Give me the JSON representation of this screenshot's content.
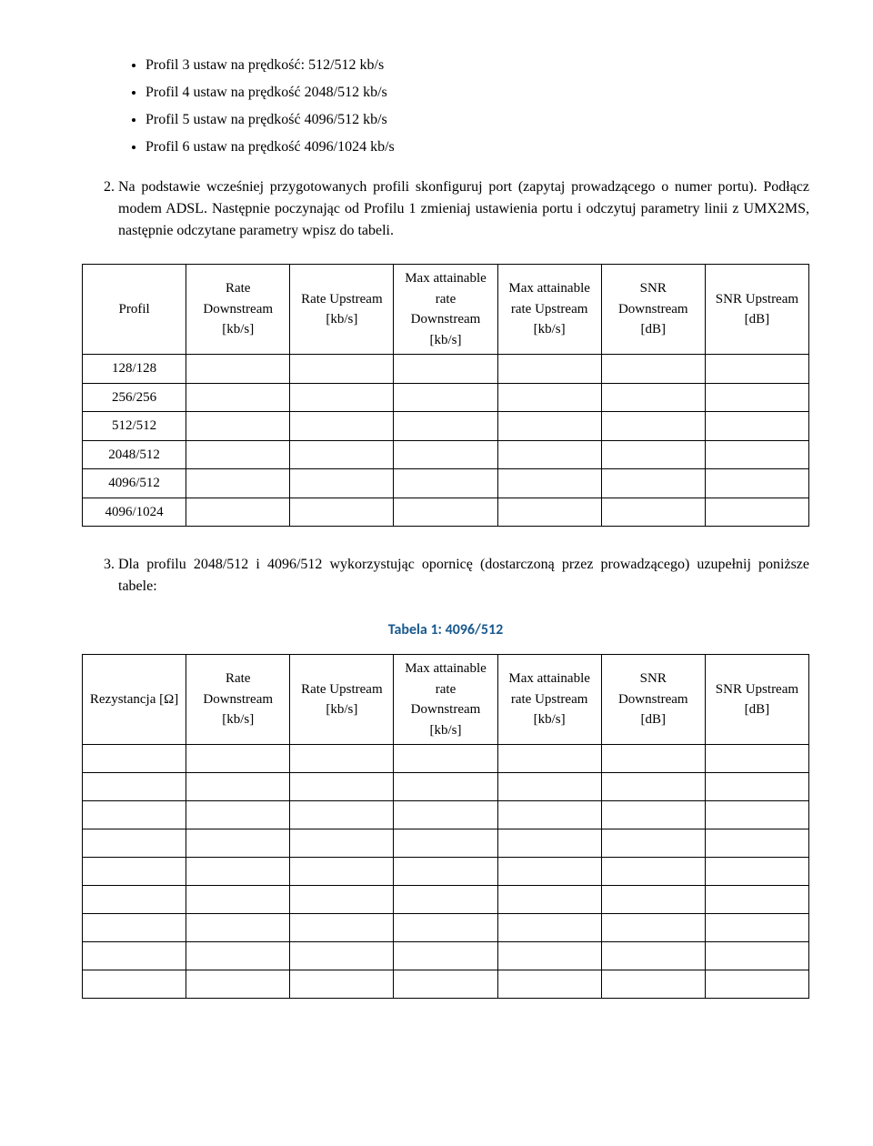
{
  "bullets": [
    "Profil 3 ustaw na prędkość: 512/512 kb/s",
    "Profil 4 ustaw na prędkość 2048/512 kb/s",
    "Profil 5 ustaw na prędkość 4096/512 kb/s",
    "Profil 6 ustaw na prędkość 4096/1024 kb/s"
  ],
  "ordered_item_2": "Na podstawie wcześniej przygotowanych profili skonfiguruj port (zapytaj prowadzącego o numer portu). Podłącz modem ADSL. Następnie poczynając od Profilu 1 zmieniaj ustawienia portu i odczytuj parametry linii z UMX2MS, następnie odczytane parametry wpisz do tabeli.",
  "table1": {
    "columns": [
      "Profil",
      "Rate Downstream [kb/s]",
      "Rate Upstream [kb/s]",
      "Max attainable rate Downstream [kb/s]",
      "Max attainable rate Upstream [kb/s]",
      "SNR Downstream [dB]",
      "SNR Upstream [dB]"
    ],
    "row_headers": [
      "128/128",
      "256/256",
      "512/512",
      "2048/512",
      "4096/512",
      "4096/1024"
    ]
  },
  "ordered_item_3": "Dla profilu 2048/512 i 4096/512 wykorzystując opornicę (dostarczoną przez prowadzącego) uzupełnij poniższe tabele:",
  "table2_caption": "Tabela 1: 4096/512",
  "table2": {
    "columns": [
      "Rezystancja [Ω]",
      "Rate Downstream [kb/s]",
      "Rate Upstream [kb/s]",
      "Max attainable rate Downstream [kb/s]",
      "Max attainable rate Upstream [kb/s]",
      "SNR Downstream [dB]",
      "SNR Upstream [dB]"
    ],
    "row_count": 9
  }
}
